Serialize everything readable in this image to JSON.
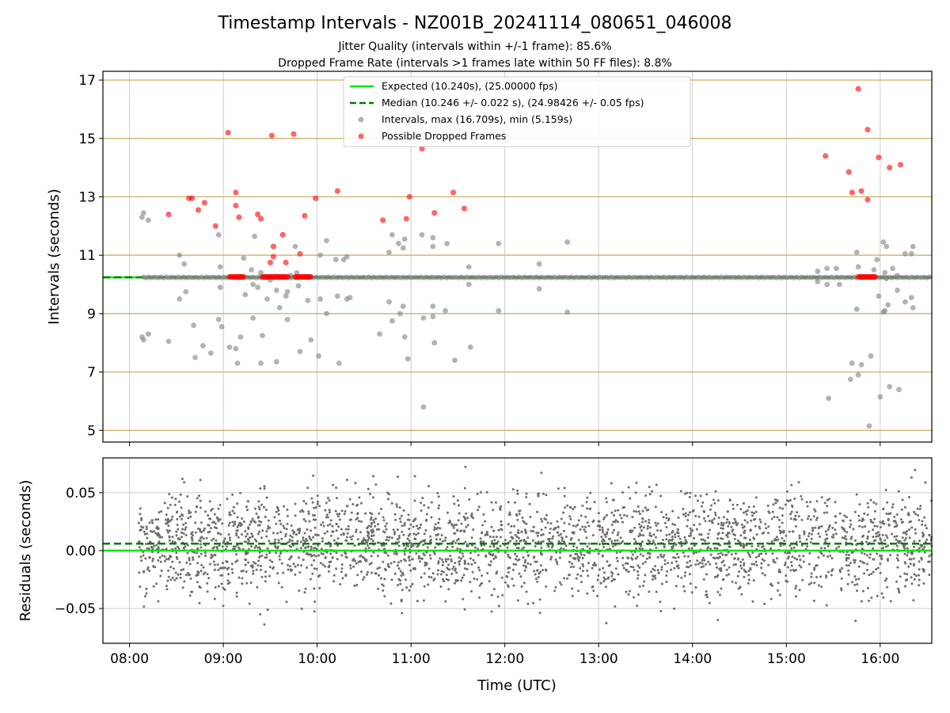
{
  "figure": {
    "title": "Timestamp Intervals - NZ001B_20241114_080651_046008",
    "subtitle_1": "Jitter Quality (intervals within +/-1 frame): 85.6%",
    "subtitle_2": "Dropped Frame Rate (intervals >1 frames late within 50 FF files): 8.8%",
    "xlabel": "Time (UTC)"
  },
  "colors": {
    "expected": "#00e600",
    "median": "#007a00",
    "intervals": "#808080",
    "dropped": "#ff0000",
    "hgrid_top": "#c8aa55",
    "vgrid": "#cccccc",
    "residuals": "#6e6e6e"
  },
  "chart_data": [
    {
      "type": "scatter",
      "panel": "top",
      "ylabel": "Intervals (seconds)",
      "xlim": [
        "07:43",
        "16:33"
      ],
      "ylim": [
        4.6,
        17.3
      ],
      "yticks": [
        5,
        7,
        9,
        11,
        13,
        15,
        17
      ],
      "xticks": [
        "08:00",
        "09:00",
        "10:00",
        "11:00",
        "12:00",
        "13:00",
        "14:00",
        "15:00",
        "16:00"
      ],
      "grid": "on",
      "legend_position": "top-center",
      "legend": [
        {
          "label": "Expected (10.240s), (25.00000 fps)",
          "kind": "line",
          "color": "#00e600"
        },
        {
          "label": "Median (10.246 +/- 0.022 s), (24.98426 +/- 0.05 fps)",
          "kind": "dashed",
          "color": "#007a00"
        },
        {
          "label": "Intervals, max (16.709s), min (5.159s)",
          "kind": "point",
          "color": "#808080"
        },
        {
          "label": "Possible Dropped Frames",
          "kind": "point",
          "color": "#ff0000"
        }
      ],
      "expected": 10.24,
      "median": 10.246,
      "series": [
        {
          "name": "Intervals",
          "points": [
            [
              "08:08",
              12.3
            ],
            [
              "08:09",
              12.45
            ],
            [
              "08:12",
              12.2
            ],
            [
              "08:08",
              8.2
            ],
            [
              "08:09",
              8.1
            ],
            [
              "08:12",
              8.3
            ],
            [
              "08:25",
              8.05
            ],
            [
              "08:32",
              11.0
            ],
            [
              "08:35",
              10.7
            ],
            [
              "08:32",
              9.5
            ],
            [
              "08:36",
              9.75
            ],
            [
              "08:41",
              8.6
            ],
            [
              "08:42",
              7.5
            ],
            [
              "08:47",
              7.9
            ],
            [
              "08:52",
              7.65
            ],
            [
              "08:57",
              11.7
            ],
            [
              "08:58",
              10.6
            ],
            [
              "08:58",
              9.9
            ],
            [
              "08:57",
              8.8
            ],
            [
              "08:59",
              8.55
            ],
            [
              "09:04",
              7.85
            ],
            [
              "09:08",
              7.8
            ],
            [
              "09:09",
              7.3
            ],
            [
              "09:11",
              8.2
            ],
            [
              "09:13",
              10.9
            ],
            [
              "09:14",
              9.65
            ],
            [
              "09:18",
              10.5
            ],
            [
              "09:19",
              10.0
            ],
            [
              "09:20",
              11.65
            ],
            [
              "09:19",
              8.85
            ],
            [
              "09:22",
              9.9
            ],
            [
              "09:24",
              10.4
            ],
            [
              "09:24",
              7.3
            ],
            [
              "09:25",
              8.25
            ],
            [
              "09:28",
              9.5
            ],
            [
              "09:30",
              10.15
            ],
            [
              "09:34",
              9.8
            ],
            [
              "09:34",
              7.35
            ],
            [
              "09:36",
              9.2
            ],
            [
              "09:40",
              9.6
            ],
            [
              "09:41",
              9.75
            ],
            [
              "09:41",
              8.8
            ],
            [
              "09:43",
              10.3
            ],
            [
              "09:46",
              11.3
            ],
            [
              "09:47",
              10.4
            ],
            [
              "09:48",
              9.95
            ],
            [
              "09:49",
              7.7
            ],
            [
              "09:54",
              9.45
            ],
            [
              "09:56",
              8.1
            ],
            [
              "10:01",
              7.55
            ],
            [
              "10:02",
              9.5
            ],
            [
              "10:02",
              11.0
            ],
            [
              "10:06",
              9.0
            ],
            [
              "10:06",
              11.5
            ],
            [
              "10:12",
              10.85
            ],
            [
              "10:13",
              9.6
            ],
            [
              "10:14",
              7.3
            ],
            [
              "10:17",
              10.85
            ],
            [
              "10:19",
              9.5
            ],
            [
              "10:19",
              10.95
            ],
            [
              "10:21",
              9.55
            ],
            [
              "10:40",
              8.3
            ],
            [
              "10:46",
              11.1
            ],
            [
              "10:46",
              9.4
            ],
            [
              "10:48",
              11.7
            ],
            [
              "10:48",
              8.75
            ],
            [
              "10:52",
              11.4
            ],
            [
              "10:53",
              9.0
            ],
            [
              "10:55",
              11.25
            ],
            [
              "10:55",
              9.25
            ],
            [
              "10:56",
              11.55
            ],
            [
              "10:56",
              8.2
            ],
            [
              "10:58",
              7.45
            ],
            [
              "11:07",
              11.7
            ],
            [
              "11:08",
              5.8
            ],
            [
              "11:08",
              8.85
            ],
            [
              "11:14",
              11.6
            ],
            [
              "11:14",
              11.3
            ],
            [
              "11:14",
              9.25
            ],
            [
              "11:14",
              8.9
            ],
            [
              "11:15",
              8.0
            ],
            [
              "11:23",
              11.4
            ],
            [
              "11:22",
              9.1
            ],
            [
              "11:28",
              7.4
            ],
            [
              "11:37",
              10.6
            ],
            [
              "11:37",
              10.0
            ],
            [
              "11:38",
              7.85
            ],
            [
              "11:56",
              11.4
            ],
            [
              "11:56",
              9.1
            ],
            [
              "12:22",
              10.7
            ],
            [
              "12:22",
              9.85
            ],
            [
              "12:40",
              11.45
            ],
            [
              "12:40",
              9.05
            ],
            [
              "15:20",
              10.45
            ],
            [
              "15:20",
              10.1
            ],
            [
              "15:26",
              10.55
            ],
            [
              "15:26",
              10.0
            ],
            [
              "15:27",
              6.1
            ],
            [
              "15:32",
              10.55
            ],
            [
              "15:34",
              10.0
            ],
            [
              "15:41",
              6.75
            ],
            [
              "15:42",
              7.3
            ],
            [
              "15:45",
              9.15
            ],
            [
              "15:45",
              11.1
            ],
            [
              "15:46",
              10.6
            ],
            [
              "15:46",
              6.9
            ],
            [
              "15:48",
              7.25
            ],
            [
              "15:53",
              5.15
            ],
            [
              "15:54",
              7.55
            ],
            [
              "15:56",
              10.5
            ],
            [
              "15:58",
              10.85
            ],
            [
              "15:59",
              9.6
            ],
            [
              "16:00",
              6.15
            ],
            [
              "16:02",
              11.45
            ],
            [
              "16:02",
              9.05
            ],
            [
              "16:03",
              10.4
            ],
            [
              "16:03",
              9.1
            ],
            [
              "16:04",
              11.3
            ],
            [
              "16:04",
              10.2
            ],
            [
              "16:05",
              9.3
            ],
            [
              "16:06",
              6.5
            ],
            [
              "16:08",
              10.55
            ],
            [
              "16:11",
              10.3
            ],
            [
              "16:11",
              9.8
            ],
            [
              "16:12",
              6.4
            ],
            [
              "16:16",
              11.05
            ],
            [
              "16:16",
              9.4
            ],
            [
              "16:20",
              11.05
            ],
            [
              "16:20",
              9.55
            ],
            [
              "16:21",
              11.3
            ],
            [
              "16:21",
              9.2
            ]
          ]
        },
        {
          "name": "Possible Dropped Frames",
          "points": [
            [
              "08:25",
              12.4
            ],
            [
              "08:38",
              12.95
            ],
            [
              "08:40",
              12.95
            ],
            [
              "08:44",
              12.55
            ],
            [
              "08:48",
              12.8
            ],
            [
              "08:55",
              12.0
            ],
            [
              "09:03",
              15.2
            ],
            [
              "09:08",
              13.15
            ],
            [
              "09:08",
              12.7
            ],
            [
              "09:10",
              12.3
            ],
            [
              "09:22",
              12.4
            ],
            [
              "09:24",
              12.25
            ],
            [
              "09:30",
              10.75
            ],
            [
              "09:31",
              15.1
            ],
            [
              "09:32",
              11.3
            ],
            [
              "09:32",
              10.95
            ],
            [
              "09:38",
              11.7
            ],
            [
              "09:40",
              10.75
            ],
            [
              "09:45",
              15.15
            ],
            [
              "09:49",
              11.05
            ],
            [
              "09:52",
              12.35
            ],
            [
              "09:59",
              12.95
            ],
            [
              "10:13",
              13.2
            ],
            [
              "10:42",
              12.2
            ],
            [
              "10:57",
              12.25
            ],
            [
              "10:59",
              13.0
            ],
            [
              "11:07",
              14.65
            ],
            [
              "11:15",
              12.45
            ],
            [
              "11:27",
              13.15
            ],
            [
              "11:34",
              12.6
            ],
            [
              "15:25",
              14.4
            ],
            [
              "15:40",
              13.85
            ],
            [
              "15:42",
              13.15
            ],
            [
              "15:46",
              16.7
            ],
            [
              "15:48",
              13.2
            ],
            [
              "15:52",
              12.9
            ],
            [
              "15:52",
              15.3
            ],
            [
              "15:59",
              14.35
            ],
            [
              "16:06",
              14.0
            ],
            [
              "16:13",
              14.1
            ]
          ]
        }
      ]
    },
    {
      "type": "scatter",
      "panel": "bottom",
      "ylabel": "Residuals (seconds)",
      "xlabel": "Time (UTC)",
      "xlim": [
        "07:43",
        "16:33"
      ],
      "ylim": [
        -0.08,
        0.08
      ],
      "yticks": [
        -0.05,
        0.0,
        0.05
      ],
      "ytick_labels": [
        "−0.05",
        "0.00",
        "0.05"
      ],
      "xticks": [
        "08:00",
        "09:00",
        "10:00",
        "11:00",
        "12:00",
        "13:00",
        "14:00",
        "15:00",
        "16:00"
      ],
      "grid": "on",
      "expected": 0.0,
      "median": 0.006,
      "residual_spread_std": 0.022,
      "x_start": "08:06",
      "x_end": "16:33",
      "approx_point_count": 2900
    }
  ]
}
